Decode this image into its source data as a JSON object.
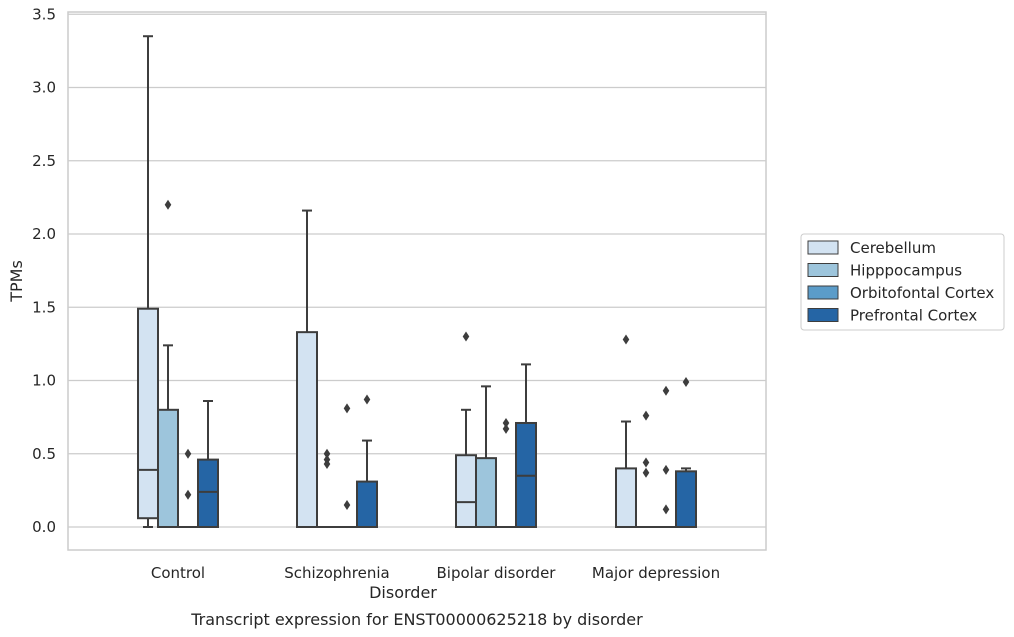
{
  "chart_data": {
    "type": "box",
    "title": "",
    "caption": "Transcript expression for ENST00000625218 by disorder",
    "xlabel": "Disorder",
    "ylabel": "TPMs",
    "ylim": [
      -0.16,
      3.53
    ],
    "yticks": [
      "0.0",
      "0.5",
      "1.0",
      "1.5",
      "2.0",
      "2.5",
      "3.0",
      "3.5"
    ],
    "grid": "horizontal",
    "legend_position": "right",
    "categories": [
      "Control",
      "Schizophrenia",
      "Bipolar disorder",
      "Major depression"
    ],
    "series": [
      {
        "name": "Cerebellum",
        "color": "#d3e3f2",
        "boxes": [
          {
            "q1": 0.06,
            "median": 0.39,
            "q3": 1.49,
            "whislo": 0.0,
            "whishi": 3.35,
            "fliers": []
          },
          {
            "q1": 0.0,
            "median": 0.0,
            "q3": 1.33,
            "whislo": 0.0,
            "whishi": 2.16,
            "fliers": []
          },
          {
            "q1": 0.0,
            "median": 0.17,
            "q3": 0.49,
            "whislo": 0.0,
            "whishi": 0.8,
            "fliers": [
              1.3
            ]
          },
          {
            "q1": 0.0,
            "median": 0.0,
            "q3": 0.4,
            "whislo": 0.0,
            "whishi": 0.72,
            "fliers": [
              1.28
            ]
          }
        ]
      },
      {
        "name": "Hipppocampus",
        "color": "#9dc5dc",
        "boxes": [
          {
            "q1": 0.0,
            "median": 0.0,
            "q3": 0.8,
            "whislo": 0.0,
            "whishi": 1.24,
            "fliers": [
              2.2
            ]
          },
          {
            "q1": 0.0,
            "median": 0.0,
            "q3": 0.0,
            "whislo": 0.0,
            "whishi": 0.0,
            "fliers": [
              0.5,
              0.46,
              0.43
            ]
          },
          {
            "q1": 0.0,
            "median": 0.0,
            "q3": 0.47,
            "whislo": 0.0,
            "whishi": 0.96,
            "fliers": []
          },
          {
            "q1": 0.0,
            "median": 0.0,
            "q3": 0.0,
            "whislo": 0.0,
            "whishi": 0.0,
            "fliers": [
              0.76,
              0.44,
              0.37
            ]
          }
        ]
      },
      {
        "name": "Orbitofontal Cortex",
        "color": "#5b9cc9",
        "boxes": [
          {
            "q1": 0.0,
            "median": 0.0,
            "q3": 0.0,
            "whislo": 0.0,
            "whishi": 0.0,
            "fliers": [
              0.5,
              0.22
            ]
          },
          {
            "q1": 0.0,
            "median": 0.0,
            "q3": 0.0,
            "whislo": 0.0,
            "whishi": 0.0,
            "fliers": [
              0.81,
              0.15
            ]
          },
          {
            "q1": 0.0,
            "median": 0.0,
            "q3": 0.0,
            "whislo": 0.0,
            "whishi": 0.0,
            "fliers": [
              0.71,
              0.67
            ]
          },
          {
            "q1": 0.0,
            "median": 0.0,
            "q3": 0.0,
            "whislo": 0.0,
            "whishi": 0.0,
            "fliers": [
              0.93,
              0.39,
              0.12
            ]
          }
        ]
      },
      {
        "name": "Prefrontal Cortex",
        "color": "#2565a5",
        "boxes": [
          {
            "q1": 0.0,
            "median": 0.24,
            "q3": 0.46,
            "whislo": 0.0,
            "whishi": 0.86,
            "fliers": []
          },
          {
            "q1": 0.0,
            "median": 0.0,
            "q3": 0.31,
            "whislo": 0.0,
            "whishi": 0.59,
            "fliers": [
              0.87
            ]
          },
          {
            "q1": 0.0,
            "median": 0.35,
            "q3": 0.71,
            "whislo": 0.0,
            "whishi": 1.11,
            "fliers": []
          },
          {
            "q1": 0.0,
            "median": 0.0,
            "q3": 0.38,
            "whislo": 0.0,
            "whishi": 0.4,
            "fliers": [
              0.99
            ]
          }
        ]
      }
    ]
  }
}
